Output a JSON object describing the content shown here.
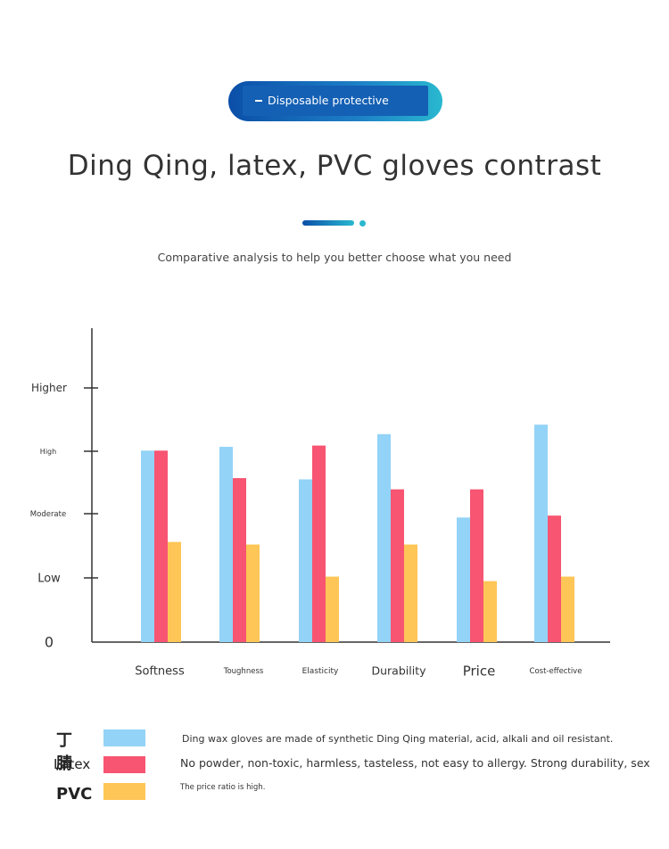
{
  "header": {
    "badge": "Disposable protective gloves",
    "title": "Ding Qing, latex, PVC gloves contrast",
    "subtitle": "Comparative analysis to help you better choose what you need"
  },
  "colors": {
    "nitrile": "#93d3f7",
    "latex": "#f75572",
    "pvc": "#fec657",
    "badge": "#1460b4"
  },
  "chart_data": {
    "type": "bar",
    "categories": [
      "Softness",
      "Toughness",
      "Elasticity",
      "Durability",
      "Price",
      "Cost-effective"
    ],
    "y_ticks": [
      {
        "label": "0",
        "value": 0
      },
      {
        "label": "Low",
        "value": 1
      },
      {
        "label": "Moderate",
        "value": 2
      },
      {
        "label": "High",
        "value": 3
      },
      {
        "label": "Higher",
        "value": 4
      }
    ],
    "ylim": [
      0,
      5
    ],
    "series": [
      {
        "name": "丁腈",
        "color": "#93d3f7",
        "values": [
          3.01,
          3.07,
          2.55,
          3.27,
          1.94,
          3.42
        ]
      },
      {
        "name": "Latex",
        "color": "#f75572",
        "values": [
          3.01,
          2.57,
          3.09,
          2.39,
          2.39,
          1.97
        ]
      },
      {
        "name": "PVC",
        "color": "#fec657",
        "values": [
          1.56,
          1.52,
          1.02,
          1.52,
          0.95,
          1.02
        ]
      }
    ]
  },
  "legend": {
    "items": [
      {
        "label": "丁腈",
        "desc": "Ding wax gloves are made of synthetic Ding Qing material, acid, alkali and oil resistant."
      },
      {
        "label": "Latex",
        "desc": "No powder, non-toxic, harmless, tasteless, not easy to allergy. Strong durability, sex"
      },
      {
        "label": "PVC",
        "desc": "The price ratio is high."
      }
    ]
  }
}
